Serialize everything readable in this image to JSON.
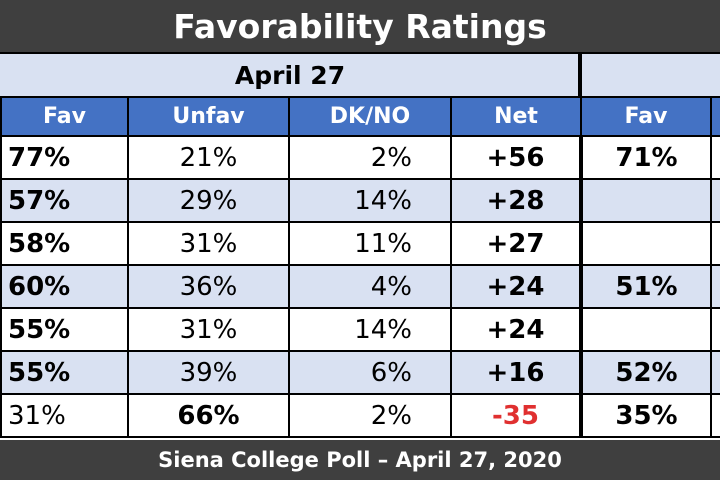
{
  "title": "Favorability Ratings",
  "date_label": "April 27",
  "footer": "Siena College Poll – April 27, 2020",
  "headers": [
    "Fav",
    "Unfav",
    "DK/NO",
    "Net",
    "Fav"
  ],
  "rows": [
    {
      "fav": "77%",
      "unfav": "21%",
      "dkno": "2%",
      "net": "+56",
      "fav2": "71%",
      "fav_bold": true,
      "unfav_bold": false,
      "net_negative": false
    },
    {
      "fav": "57%",
      "unfav": "29%",
      "dkno": "14%",
      "net": "+28",
      "fav2": "",
      "fav_bold": true,
      "unfav_bold": false,
      "net_negative": false
    },
    {
      "fav": "58%",
      "unfav": "31%",
      "dkno": "11%",
      "net": "+27",
      "fav2": "",
      "fav_bold": true,
      "unfav_bold": false,
      "net_negative": false
    },
    {
      "fav": "60%",
      "unfav": "36%",
      "dkno": "4%",
      "net": "+24",
      "fav2": "51%",
      "fav_bold": true,
      "unfav_bold": false,
      "net_negative": false
    },
    {
      "fav": "55%",
      "unfav": "31%",
      "dkno": "14%",
      "net": "+24",
      "fav2": "",
      "fav_bold": true,
      "unfav_bold": false,
      "net_negative": false
    },
    {
      "fav": "55%",
      "unfav": "39%",
      "dkno": "6%",
      "net": "+16",
      "fav2": "52%",
      "fav_bold": true,
      "unfav_bold": false,
      "net_negative": false
    },
    {
      "fav": "31%",
      "unfav": "66%",
      "dkno": "2%",
      "net": "-35",
      "fav2": "35%",
      "fav_bold": false,
      "unfav_bold": true,
      "net_negative": true
    }
  ],
  "colors": {
    "header_blue": "#4472c4",
    "row_alt": "#d9e1f2",
    "bar_dark": "#3f3f3f",
    "negative": "#e03030"
  }
}
